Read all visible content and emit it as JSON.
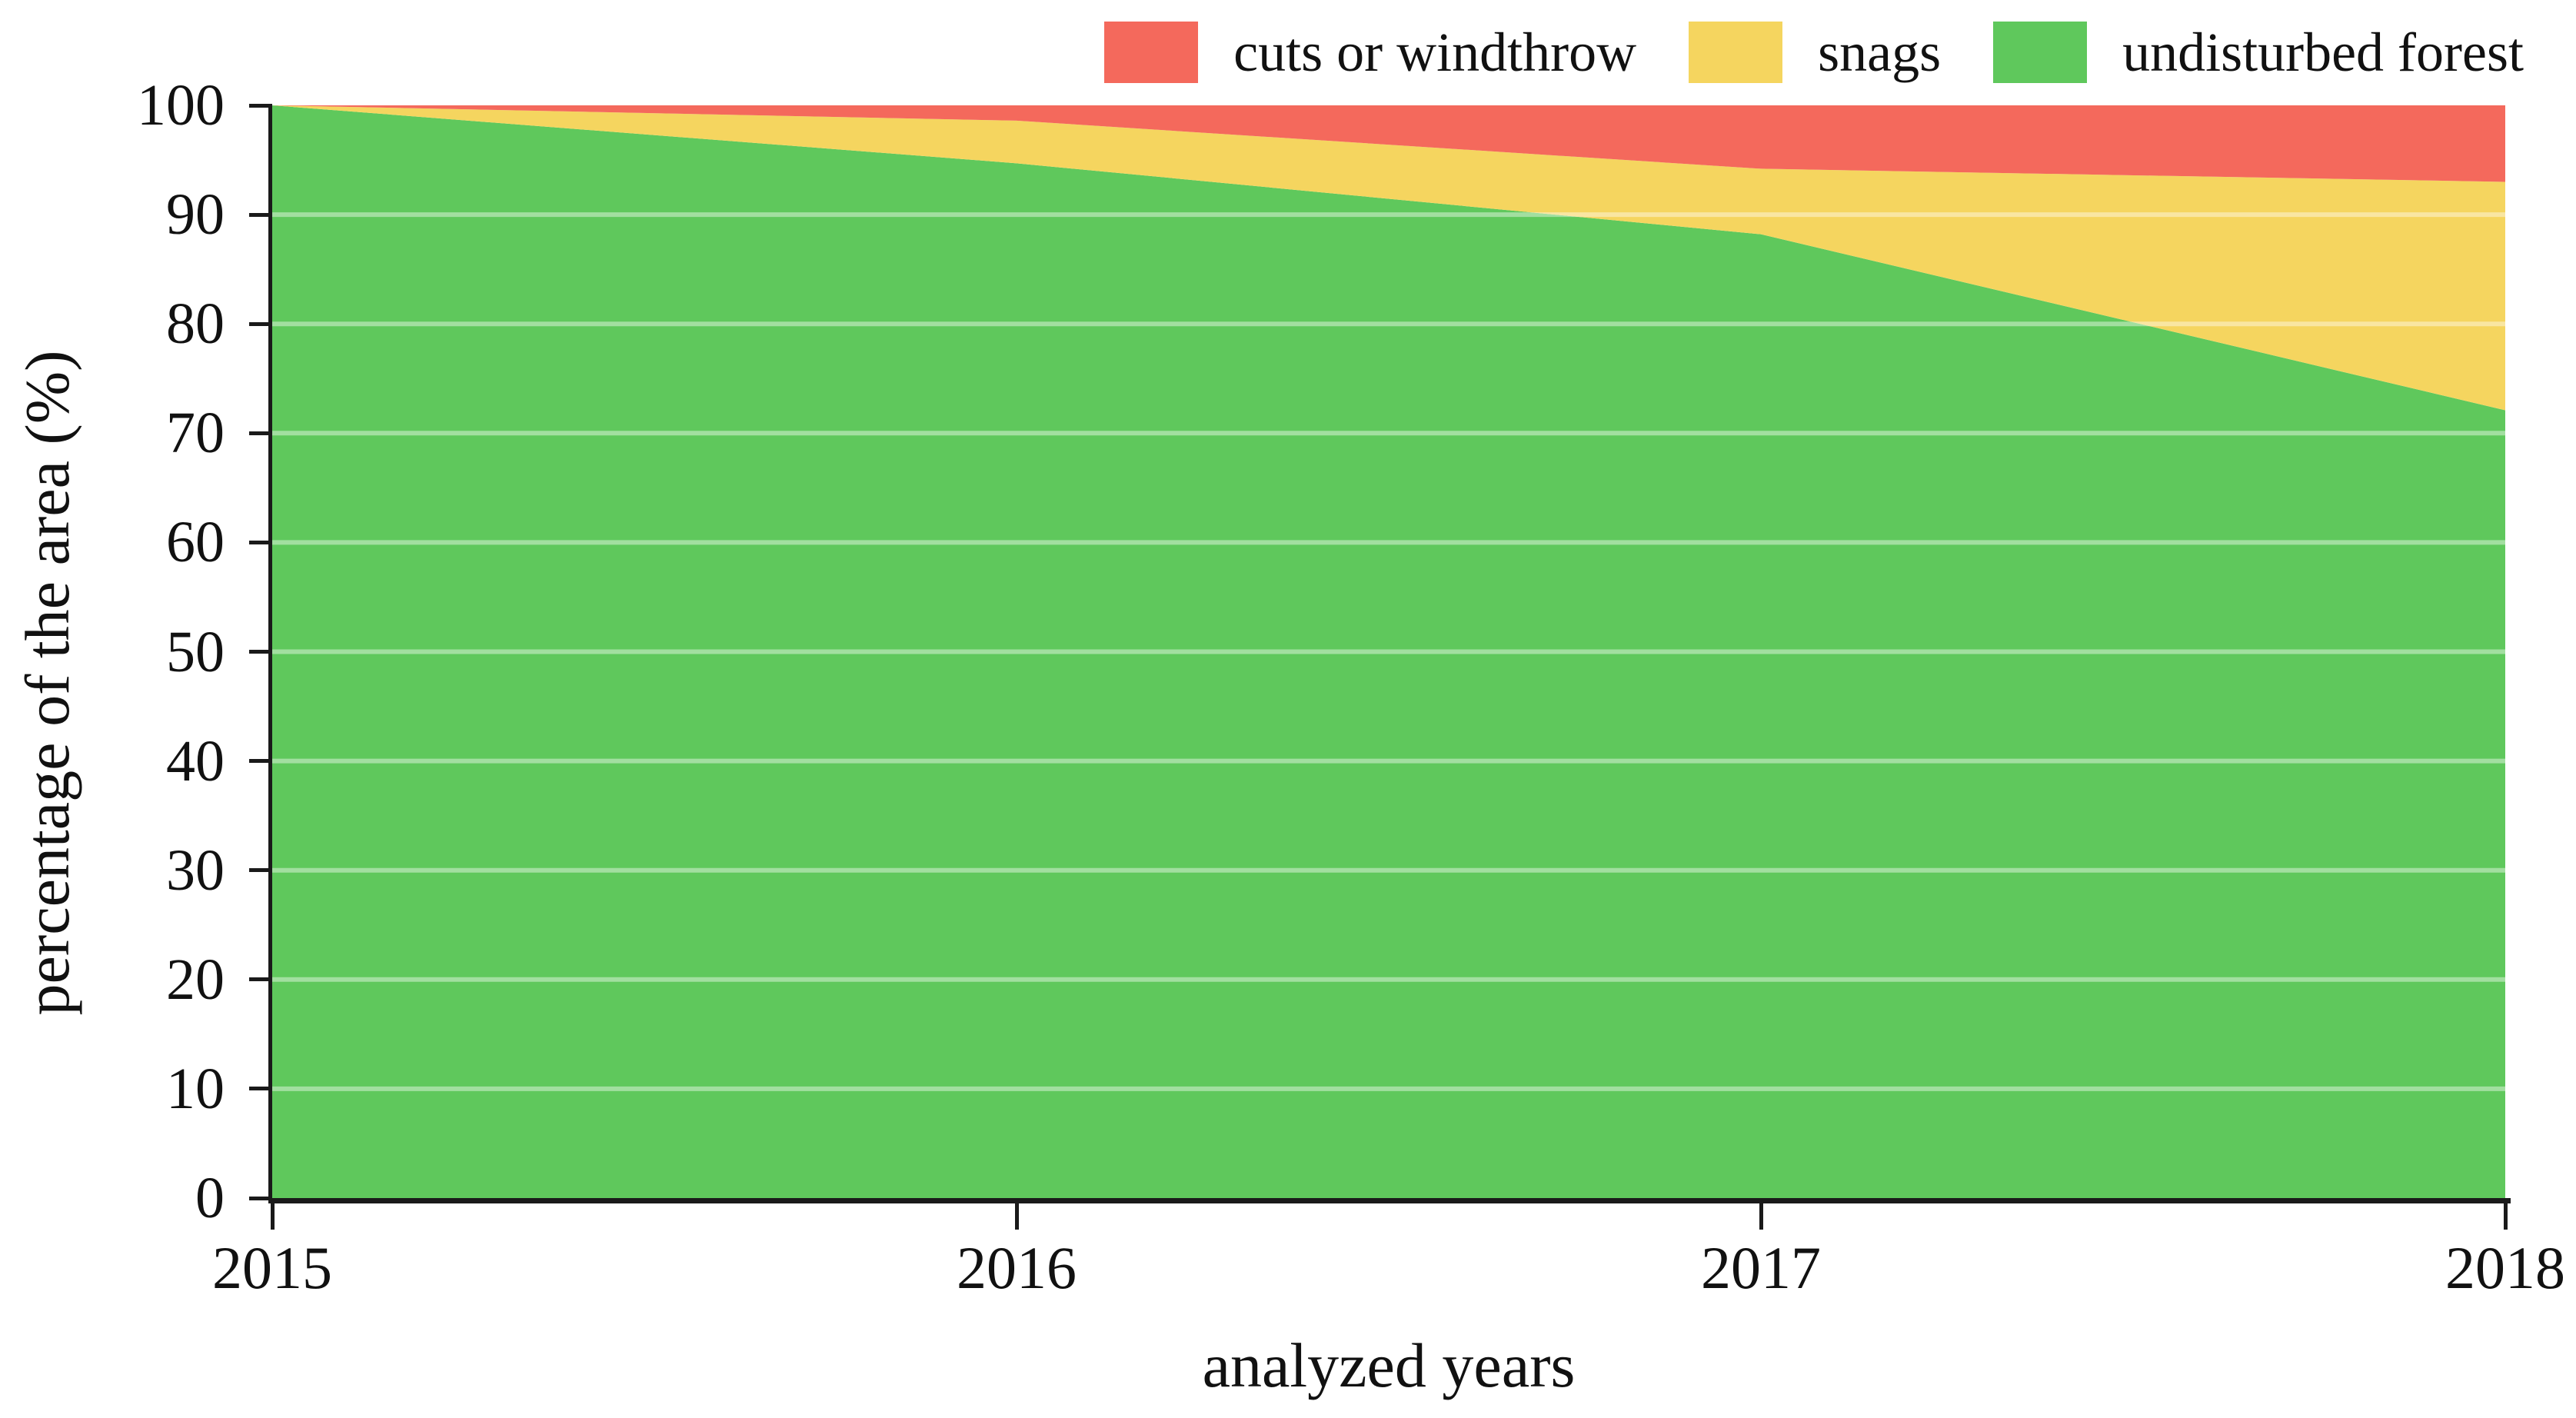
{
  "figure": {
    "background": "#ffffff",
    "text_color": "#111111",
    "axis_color": "#1a1a1a"
  },
  "legend": {
    "position": "top-right-horizontal",
    "items": [
      {
        "label": "cuts or windthrow",
        "color": "#F4695C"
      },
      {
        "label": "snags",
        "color": "#F5D55F"
      },
      {
        "label": "undisturbed forest",
        "color": "#5FC85C"
      }
    ]
  },
  "axes": {
    "y": {
      "title": "percentage of the area (%)",
      "ticks": [
        0,
        10,
        20,
        30,
        40,
        50,
        60,
        70,
        80,
        90,
        100
      ],
      "gridlines_at": [
        10,
        20,
        30,
        40,
        50,
        60,
        70,
        80,
        90
      ],
      "range": [
        0,
        100
      ]
    },
    "x": {
      "title": "analyzed years",
      "ticks": [
        "2015",
        "2016",
        "2017",
        "2018"
      ],
      "range": [
        2015,
        2018
      ]
    }
  },
  "chart_data": {
    "type": "area",
    "subtype": "stacked-100-percent",
    "title": "",
    "xlabel": "analyzed years",
    "ylabel": "percentage of the area (%)",
    "x": [
      2015,
      2016,
      2017,
      2018
    ],
    "xlim": [
      2015,
      2018
    ],
    "ylim": [
      0,
      100
    ],
    "grid": "horizontal every 10%, light lines visible through fills",
    "legend_position": "top right, outside plot, horizontal row",
    "series": [
      {
        "name": "undisturbed forest",
        "color": "#5FC85C",
        "stack_order": 0,
        "values": [
          100,
          94.7,
          88.2,
          72.1
        ]
      },
      {
        "name": "snags",
        "color": "#F5D55F",
        "stack_order": 1,
        "values": [
          0,
          3.9,
          6.0,
          20.9
        ]
      },
      {
        "name": "cuts or windthrow",
        "color": "#F4695C",
        "stack_order": 2,
        "values": [
          0,
          1.4,
          5.8,
          7.0
        ]
      }
    ],
    "cumulative_boundaries_percent": {
      "undisturbed_top": [
        100,
        94.7,
        88.2,
        72.1
      ],
      "snags_top": [
        100,
        98.6,
        94.2,
        93.0
      ],
      "cuts_top": [
        100,
        100,
        100,
        100
      ]
    }
  }
}
